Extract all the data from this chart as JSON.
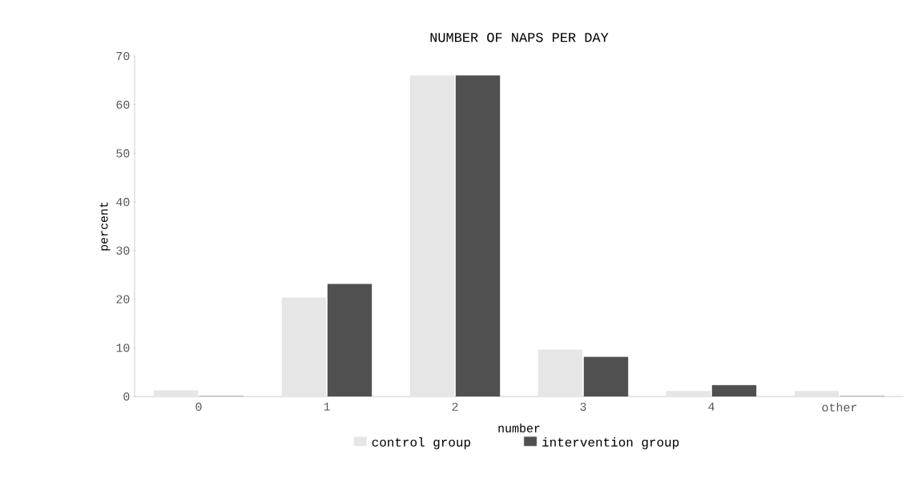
{
  "chart_data": {
    "type": "bar",
    "title": "NUMBER OF NAPS PER DAY",
    "xlabel": "number",
    "ylabel": "percent",
    "categories": [
      "0",
      "1",
      "2",
      "3",
      "4",
      "other"
    ],
    "series": [
      {
        "name": "control group",
        "color": "#e6e6e6",
        "values": [
          1.2,
          20.3,
          66,
          9.6,
          1.1,
          1.1
        ]
      },
      {
        "name": "intervention group",
        "color": "#505050",
        "values": [
          0,
          23.1,
          66,
          8.1,
          2.3,
          0
        ]
      }
    ],
    "ylim": [
      0,
      70
    ],
    "yticks": [
      0,
      10,
      20,
      30,
      40,
      50,
      60,
      70
    ],
    "grid": false,
    "legend": "bottom"
  }
}
